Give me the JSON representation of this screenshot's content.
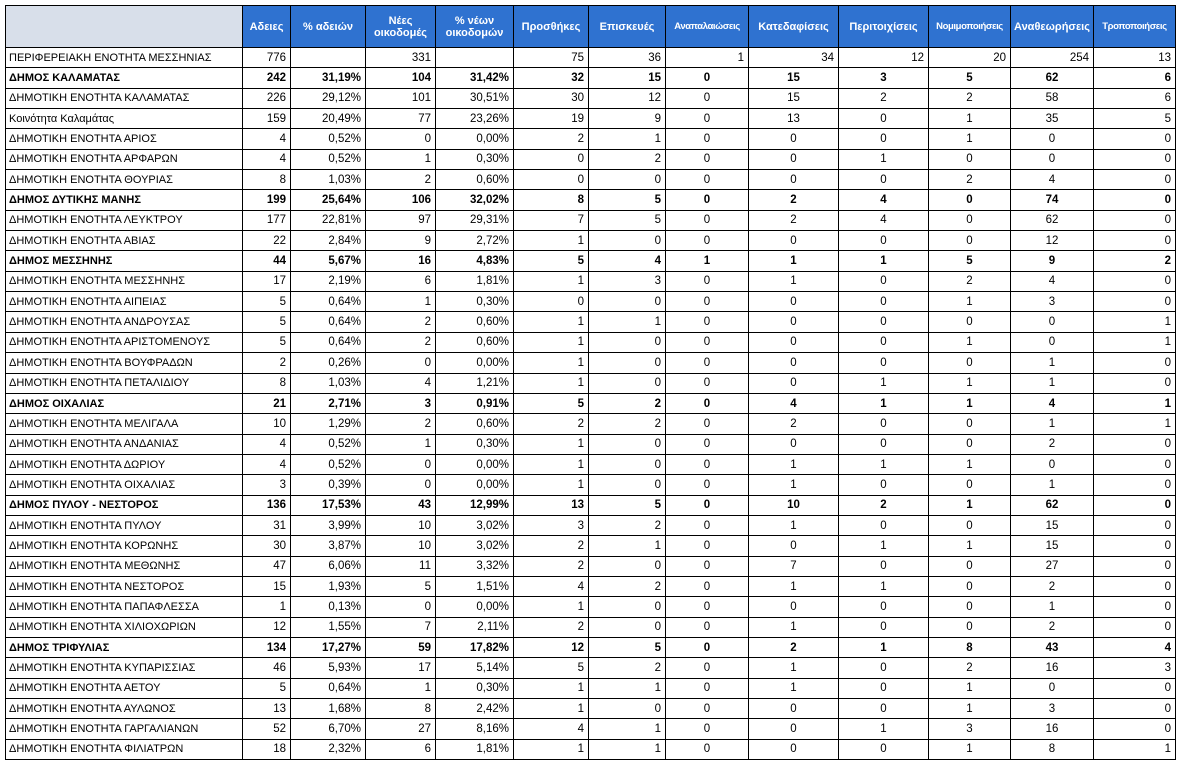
{
  "table": {
    "header": [
      null,
      "Αδειες",
      "% αδειών",
      "Νέες οικοδομές",
      "% νέων οικοδομών",
      "Προσθήκες",
      "Επισκευές",
      "Αναπαλαιώσεις",
      "Κατεδαφίσεις",
      "Περιτοιχίσεις",
      "Νομιμοποιήσεις",
      "Αναθεωρήσεις",
      "Τροποποιήσεις"
    ],
    "rows": [
      {
        "cells": [
          "ΠΕΡΙΦΕΡΕΙΑΚΗ ΕΝΟΤΗΤΑ ΜΕΣΣΗΝΙΑΣ",
          "776",
          null,
          "331",
          null,
          "75",
          "36",
          "1",
          "34",
          "12",
          "20",
          "254",
          "13"
        ],
        "bold": false
      },
      {
        "cells": [
          "ΔΗΜΟΣ ΚΑΛΑΜΑΤΑΣ",
          "242",
          "31,19%",
          "104",
          "31,42%",
          "32",
          "15",
          "0",
          "15",
          "3",
          "5",
          "62",
          "6"
        ],
        "bold": true
      },
      {
        "cells": [
          "ΔΗΜΟΤΙΚΗ ΕΝΟΤΗΤΑ ΚΑΛΑΜΑΤΑΣ",
          "226",
          "29,12%",
          "101",
          "30,51%",
          "30",
          "12",
          "0",
          "15",
          "2",
          "2",
          "58",
          "6"
        ],
        "bold": false
      },
      {
        "cells": [
          "Κοινότητα Καλαμάτας",
          "159",
          "20,49%",
          "77",
          "23,26%",
          "19",
          "9",
          "0",
          "13",
          "0",
          "1",
          "35",
          "5"
        ],
        "bold": false
      },
      {
        "cells": [
          "ΔΗΜΟΤΙΚΗ ΕΝΟΤΗΤΑ ΑΡΙΟΣ",
          "4",
          "0,52%",
          "0",
          "0,00%",
          "2",
          "1",
          "0",
          "0",
          "0",
          "1",
          "0",
          "0"
        ],
        "bold": false
      },
      {
        "cells": [
          "ΔΗΜΟΤΙΚΗ ΕΝΟΤΗΤΑ ΑΡΦΑΡΩΝ",
          "4",
          "0,52%",
          "1",
          "0,30%",
          "0",
          "2",
          "0",
          "0",
          "1",
          "0",
          "0",
          "0"
        ],
        "bold": false
      },
      {
        "cells": [
          "ΔΗΜΟΤΙΚΗ ΕΝΟΤΗΤΑ ΘΟΥΡΙΑΣ",
          "8",
          "1,03%",
          "2",
          "0,60%",
          "0",
          "0",
          "0",
          "0",
          "0",
          "2",
          "4",
          "0"
        ],
        "bold": false
      },
      {
        "cells": [
          "ΔΗΜΟΣ ΔΥΤΙΚΗΣ ΜΑΝΗΣ",
          "199",
          "25,64%",
          "106",
          "32,02%",
          "8",
          "5",
          "0",
          "2",
          "4",
          "0",
          "74",
          "0"
        ],
        "bold": true
      },
      {
        "cells": [
          "ΔΗΜΟΤΙΚΗ ΕΝΟΤΗΤΑ ΛΕΥΚΤΡΟΥ",
          "177",
          "22,81%",
          "97",
          "29,31%",
          "7",
          "5",
          "0",
          "2",
          "4",
          "0",
          "62",
          "0"
        ],
        "bold": false
      },
      {
        "cells": [
          "ΔΗΜΟΤΙΚΗ ΕΝΟΤΗΤΑ ΑΒΙΑΣ",
          "22",
          "2,84%",
          "9",
          "2,72%",
          "1",
          "0",
          "0",
          "0",
          "0",
          "0",
          "12",
          "0"
        ],
        "bold": false
      },
      {
        "cells": [
          "ΔΗΜΟΣ ΜΕΣΣΗΝΗΣ",
          "44",
          "5,67%",
          "16",
          "4,83%",
          "5",
          "4",
          "1",
          "1",
          "1",
          "5",
          "9",
          "2"
        ],
        "bold": true
      },
      {
        "cells": [
          "ΔΗΜΟΤΙΚΗ ΕΝΟΤΗΤΑ ΜΕΣΣΗΝΗΣ",
          "17",
          "2,19%",
          "6",
          "1,81%",
          "1",
          "3",
          "0",
          "1",
          "0",
          "2",
          "4",
          "0"
        ],
        "bold": false
      },
      {
        "cells": [
          "ΔΗΜΟΤΙΚΗ ΕΝΟΤΗΤΑ ΑΙΠΕΙΑΣ",
          "5",
          "0,64%",
          "1",
          "0,30%",
          "0",
          "0",
          "0",
          "0",
          "0",
          "1",
          "3",
          "0"
        ],
        "bold": false
      },
      {
        "cells": [
          "ΔΗΜΟΤΙΚΗ ΕΝΟΤΗΤΑ ΑΝΔΡΟΥΣΑΣ",
          "5",
          "0,64%",
          "2",
          "0,60%",
          "1",
          "1",
          "0",
          "0",
          "0",
          "0",
          "0",
          "1"
        ],
        "bold": false
      },
      {
        "cells": [
          "ΔΗΜΟΤΙΚΗ ΕΝΟΤΗΤΑ  ΑΡΙΣΤΟΜΕΝΟΥΣ",
          "5",
          "0,64%",
          "2",
          "0,60%",
          "1",
          "0",
          "0",
          "0",
          "0",
          "1",
          "0",
          "1"
        ],
        "bold": false
      },
      {
        "cells": [
          "ΔΗΜΟΤΙΚΗ ΕΝΟΤΗΤΑ ΒΟΥΦΡΑΔΩΝ",
          "2",
          "0,26%",
          "0",
          "0,00%",
          "1",
          "0",
          "0",
          "0",
          "0",
          "0",
          "1",
          "0"
        ],
        "bold": false
      },
      {
        "cells": [
          "ΔΗΜΟΤΙΚΗ ΕΝΟΤΗΤΑ ΠΕΤΑΛΙΔΙΟΥ",
          "8",
          "1,03%",
          "4",
          "1,21%",
          "1",
          "0",
          "0",
          "0",
          "1",
          "1",
          "1",
          "0"
        ],
        "bold": false
      },
      {
        "cells": [
          "ΔΗΜΟΣ ΟΙΧΑΛΙΑΣ",
          "21",
          "2,71%",
          "3",
          "0,91%",
          "5",
          "2",
          "0",
          "4",
          "1",
          "1",
          "4",
          "1"
        ],
        "bold": true
      },
      {
        "cells": [
          "ΔΗΜΟΤΙΚΗ ΕΝΟΤΗΤΑ ΜΕΛΙΓΑΛΑ",
          "10",
          "1,29%",
          "2",
          "0,60%",
          "2",
          "2",
          "0",
          "2",
          "0",
          "0",
          "1",
          "1"
        ],
        "bold": false
      },
      {
        "cells": [
          "ΔΗΜΟΤΙΚΗ ΕΝΟΤΗΤΑ ΑΝΔΑΝΙΑΣ",
          "4",
          "0,52%",
          "1",
          "0,30%",
          "1",
          "0",
          "0",
          "0",
          "0",
          "0",
          "2",
          "0"
        ],
        "bold": false
      },
      {
        "cells": [
          "ΔΗΜΟΤΙΚΗ ΕΝΟΤΗΤΑ ΔΩΡΙΟΥ",
          "4",
          "0,52%",
          "0",
          "0,00%",
          "1",
          "0",
          "0",
          "1",
          "1",
          "1",
          "0",
          "0"
        ],
        "bold": false
      },
      {
        "cells": [
          "ΔΗΜΟΤΙΚΗ ΕΝΟΤΗΤΑ ΟΙΧΑΛΙΑΣ",
          "3",
          "0,39%",
          "0",
          "0,00%",
          "1",
          "0",
          "0",
          "1",
          "0",
          "0",
          "1",
          "0"
        ],
        "bold": false
      },
      {
        "cells": [
          "ΔΗΜΟΣ ΠΥΛΟΥ - ΝΕΣΤΟΡΟΣ",
          "136",
          "17,53%",
          "43",
          "12,99%",
          "13",
          "5",
          "0",
          "10",
          "2",
          "1",
          "62",
          "0"
        ],
        "bold": true
      },
      {
        "cells": [
          "ΔΗΜΟΤΙΚΗ ΕΝΟΤΗΤΑ ΠΥΛΟΥ",
          "31",
          "3,99%",
          "10",
          "3,02%",
          "3",
          "2",
          "0",
          "1",
          "0",
          "0",
          "15",
          "0"
        ],
        "bold": false
      },
      {
        "cells": [
          "ΔΗΜΟΤΙΚΗ ΕΝΟΤΗΤΑ ΚΟΡΩΝΗΣ",
          "30",
          "3,87%",
          "10",
          "3,02%",
          "2",
          "1",
          "0",
          "0",
          "1",
          "1",
          "15",
          "0"
        ],
        "bold": false
      },
      {
        "cells": [
          "ΔΗΜΟΤΙΚΗ ΕΝΟΤΗΤΑ ΜΕΘΩΝΗΣ",
          "47",
          "6,06%",
          "11",
          "3,32%",
          "2",
          "0",
          "0",
          "7",
          "0",
          "0",
          "27",
          "0"
        ],
        "bold": false
      },
      {
        "cells": [
          "ΔΗΜΟΤΙΚΗ ΕΝΟΤΗΤΑ ΝΕΣΤΟΡΟΣ",
          "15",
          "1,93%",
          "5",
          "1,51%",
          "4",
          "2",
          "0",
          "1",
          "1",
          "0",
          "2",
          "0"
        ],
        "bold": false
      },
      {
        "cells": [
          "ΔΗΜΟΤΙΚΗ ΕΝΟΤΗΤΑ ΠΑΠΑΦΛΕΣΣΑ",
          "1",
          "0,13%",
          "0",
          "0,00%",
          "1",
          "0",
          "0",
          "0",
          "0",
          "0",
          "1",
          "0"
        ],
        "bold": false
      },
      {
        "cells": [
          "ΔΗΜΟΤΙΚΗ ΕΝΟΤΗΤΑ ΧΙΛΙΟΧΩΡΙΩΝ",
          "12",
          "1,55%",
          "7",
          "2,11%",
          "2",
          "0",
          "0",
          "1",
          "0",
          "0",
          "2",
          "0"
        ],
        "bold": false
      },
      {
        "cells": [
          "ΔΗΜΟΣ ΤΡΙΦΥΛΙΑΣ",
          "134",
          "17,27%",
          "59",
          "17,82%",
          "12",
          "5",
          "0",
          "2",
          "1",
          "8",
          "43",
          "4"
        ],
        "bold": true
      },
      {
        "cells": [
          "ΔΗΜΟΤΙΚΗ ΕΝΟΤΗΤΑ ΚΥΠΑΡΙΣΣΙΑΣ",
          "46",
          "5,93%",
          "17",
          "5,14%",
          "5",
          "2",
          "0",
          "1",
          "0",
          "2",
          "16",
          "3"
        ],
        "bold": false
      },
      {
        "cells": [
          "ΔΗΜΟΤΙΚΗ ΕΝΟΤΗΤΑ ΑΕΤΟΥ",
          "5",
          "0,64%",
          "1",
          "0,30%",
          "1",
          "1",
          "0",
          "1",
          "0",
          "1",
          "0",
          "0"
        ],
        "bold": false
      },
      {
        "cells": [
          "ΔΗΜΟΤΙΚΗ ΕΝΟΤΗΤΑ ΑΥΛΩΝΟΣ",
          "13",
          "1,68%",
          "8",
          "2,42%",
          "1",
          "0",
          "0",
          "0",
          "0",
          "1",
          "3",
          "0"
        ],
        "bold": false
      },
      {
        "cells": [
          "ΔΗΜΟΤΙΚΗ ΕΝΟΤΗΤΑ ΓΑΡΓΑΛΙΑΝΩΝ",
          "52",
          "6,70%",
          "27",
          "8,16%",
          "4",
          "1",
          "0",
          "0",
          "1",
          "3",
          "16",
          "0"
        ],
        "bold": false
      },
      {
        "cells": [
          "ΔΗΜΟΤΙΚΗ ΕΝΟΤΗΤΑ ΦΙΛΙΑΤΡΩΝ",
          "18",
          "2,32%",
          "6",
          "1,81%",
          "1",
          "1",
          "0",
          "0",
          "0",
          "1",
          "8",
          "1"
        ],
        "bold": false
      }
    ]
  }
}
